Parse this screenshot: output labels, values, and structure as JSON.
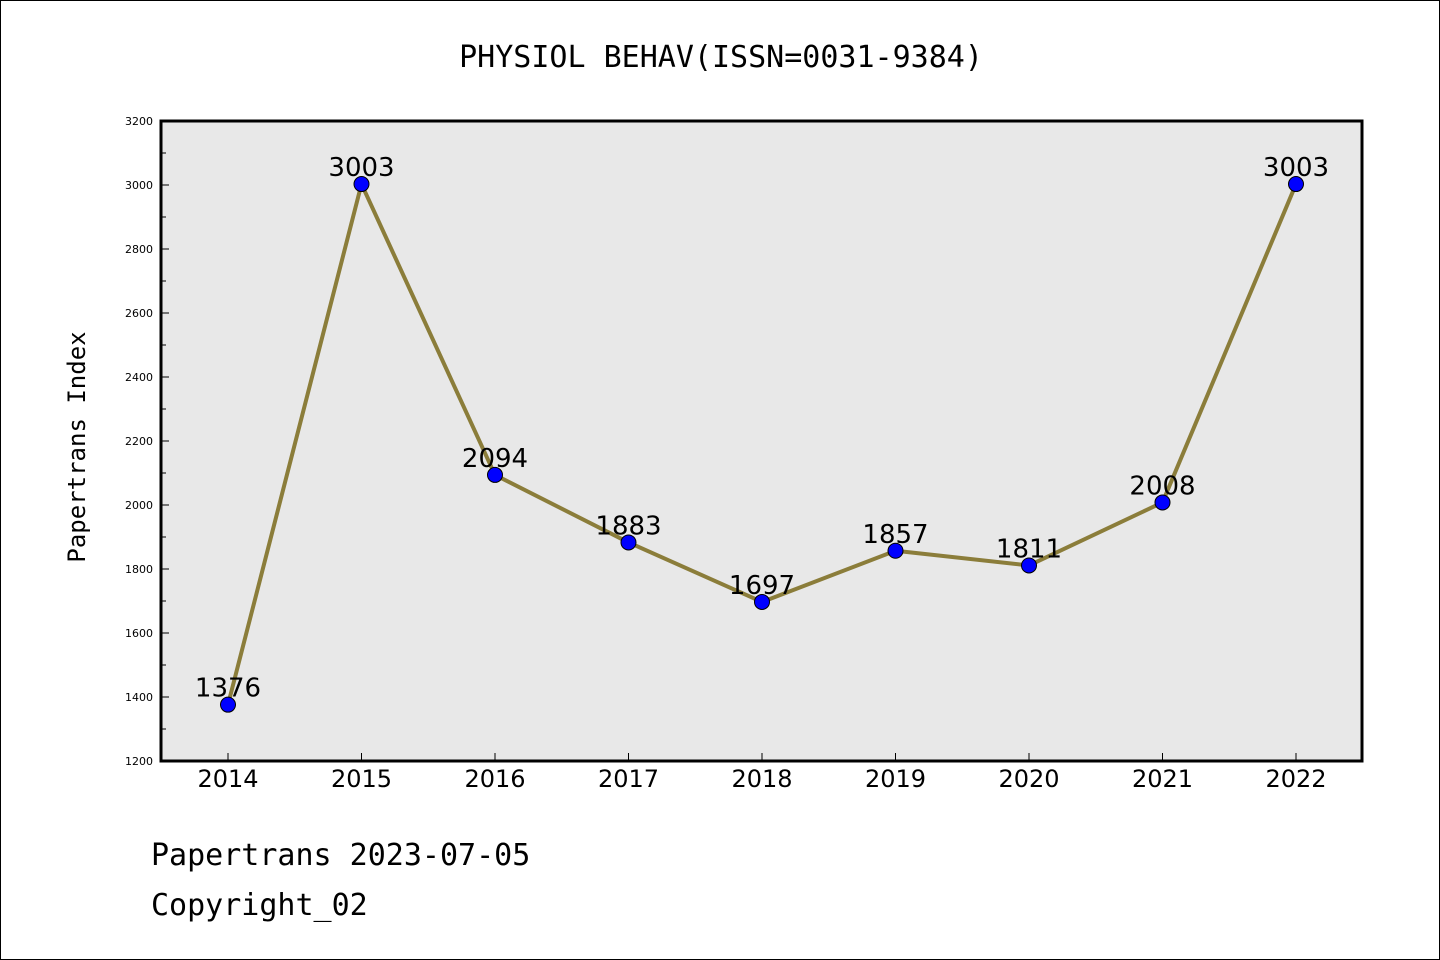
{
  "chart_data": {
    "type": "line",
    "title": "PHYSIOL BEHAV(ISSN=0031-9384)",
    "xlabel": "",
    "ylabel": "Papertrans Index",
    "categories": [
      "2014",
      "2015",
      "2016",
      "2017",
      "2018",
      "2019",
      "2020",
      "2021",
      "2022"
    ],
    "series": [
      {
        "values": [
          1376,
          3003,
          2094,
          1883,
          1697,
          1857,
          1811,
          2008,
          3003
        ],
        "color": "#8b7d3a",
        "marker_color": "#0000ff"
      }
    ],
    "ylim": [
      1200,
      3200
    ],
    "yticks": [
      1200,
      1400,
      1600,
      1800,
      2000,
      2200,
      2400,
      2600,
      2800,
      3000,
      3200
    ],
    "data_labels": [
      "1376",
      "3003",
      "2094",
      "1883",
      "1697",
      "1857",
      "1811",
      "2008",
      "3003"
    ],
    "grid": false,
    "plot_background": "#e8e8e8",
    "legend": "none"
  },
  "footer": {
    "line1": "Papertrans 2023-07-05",
    "line2": "Copyright_02"
  }
}
